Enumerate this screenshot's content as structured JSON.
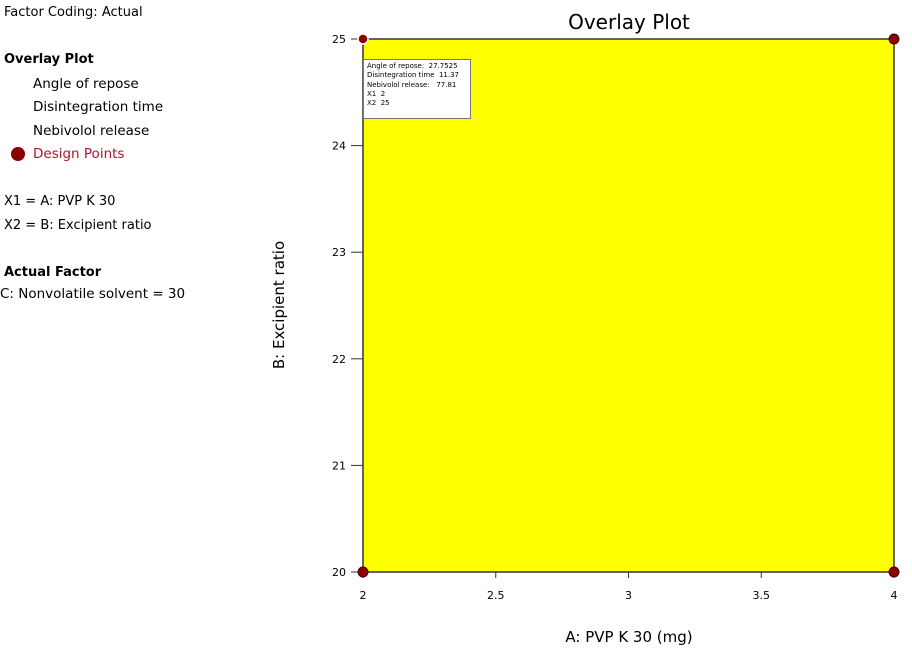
{
  "sidebar": {
    "factor_coding": "Factor Coding: Actual",
    "overlay_title": "Overlay Plot",
    "responses": [
      "Angle of repose",
      "Disintegration time",
      "Nebivolol release"
    ],
    "design_points_label": "Design Points",
    "x1": "X1 = A: PVP K 30",
    "x2": "X2 = B: Excipient ratio",
    "actual_factor_title": "Actual Factor",
    "actual_factor_value": "C: Nonvolatile solvent  = 30"
  },
  "tooltip": {
    "row1_label": "Angle of repose:",
    "row1_value": "27.7525",
    "row2_label": "Disintegration time",
    "row2_value": "11.37",
    "row3_label": "Nebivolol release:",
    "row3_value": "77.81",
    "row4_label": "X1",
    "row4_value": "2",
    "row5_label": "X2",
    "row5_value": "25"
  },
  "colors": {
    "region_fill": "#ffff00",
    "design_point": "#8b0000",
    "design_label": "#a8172d"
  },
  "chart_data": {
    "type": "scatter",
    "title": "Overlay Plot",
    "xlabel": "A: PVP K 30 (mg)",
    "ylabel": "B: Excipient ratio",
    "xlim": [
      2,
      4
    ],
    "ylim": [
      20,
      25
    ],
    "x_ticks": [
      2,
      2.5,
      3,
      3.5,
      4
    ],
    "x_tick_labels": [
      "2",
      "2.5",
      "3",
      "3.5",
      "4"
    ],
    "y_ticks": [
      20,
      21,
      22,
      23,
      24,
      25
    ],
    "y_tick_labels": [
      "20",
      "21",
      "22",
      "23",
      "24",
      "25"
    ],
    "shaded_region": {
      "x": [
        2,
        4
      ],
      "y": [
        20,
        25
      ],
      "color": "#ffff00"
    },
    "series": [
      {
        "name": "Design Points",
        "x": [
          2,
          4,
          2,
          4
        ],
        "y": [
          25,
          25,
          20,
          20
        ]
      }
    ],
    "selected_point": {
      "x": 2,
      "y": 25
    },
    "grid": false,
    "legend": "left"
  }
}
